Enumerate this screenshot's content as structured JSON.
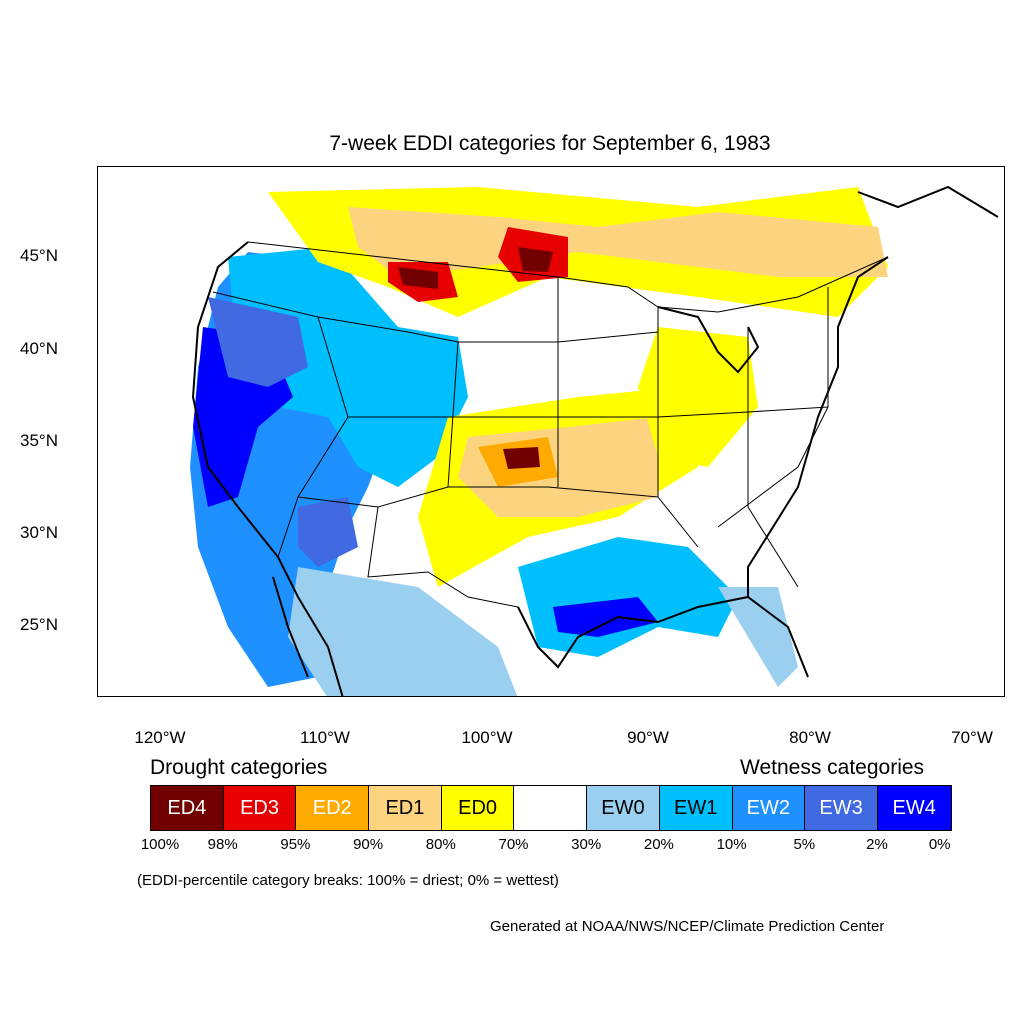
{
  "title": "7-week EDDI categories for September 6, 1983",
  "latitude_labels": [
    "45°N",
    "40°N",
    "35°N",
    "30°N",
    "25°N"
  ],
  "longitude_labels": [
    "120°W",
    "110°W",
    "100°W",
    "90°W",
    "80°W",
    "70°W"
  ],
  "legend": {
    "drought_heading": "Drought categories",
    "wetness_heading": "Wetness categories",
    "categories": [
      {
        "label": "ED4",
        "color": "#730000",
        "text_color": "#ffffff"
      },
      {
        "label": "ED3",
        "color": "#e60000",
        "text_color": "#ffffff"
      },
      {
        "label": "ED2",
        "color": "#ffaa00",
        "text_color": "#ffffff"
      },
      {
        "label": "ED1",
        "color": "#fcd37f",
        "text_color": "#000000"
      },
      {
        "label": "ED0",
        "color": "#ffff00",
        "text_color": "#000000"
      },
      {
        "label": "",
        "color": "#ffffff",
        "text_color": "#000000"
      },
      {
        "label": "EW0",
        "color": "#9bcfef",
        "text_color": "#000000"
      },
      {
        "label": "EW1",
        "color": "#00bfff",
        "text_color": "#000000"
      },
      {
        "label": "EW2",
        "color": "#1e90ff",
        "text_color": "#ffffff"
      },
      {
        "label": "EW3",
        "color": "#4169e1",
        "text_color": "#ffffff"
      },
      {
        "label": "EW4",
        "color": "#0000ff",
        "text_color": "#ffffff"
      }
    ],
    "breaks": [
      "100%",
      "98%",
      "95%",
      "90%",
      "80%",
      "70%",
      "30%",
      "20%",
      "10%",
      "5%",
      "2%",
      "0%"
    ],
    "note": "(EDDI-percentile category breaks: 100% = driest; 0% = wettest)"
  },
  "credit": "Generated at NOAA/NWS/NCEP/Climate Prediction Center"
}
